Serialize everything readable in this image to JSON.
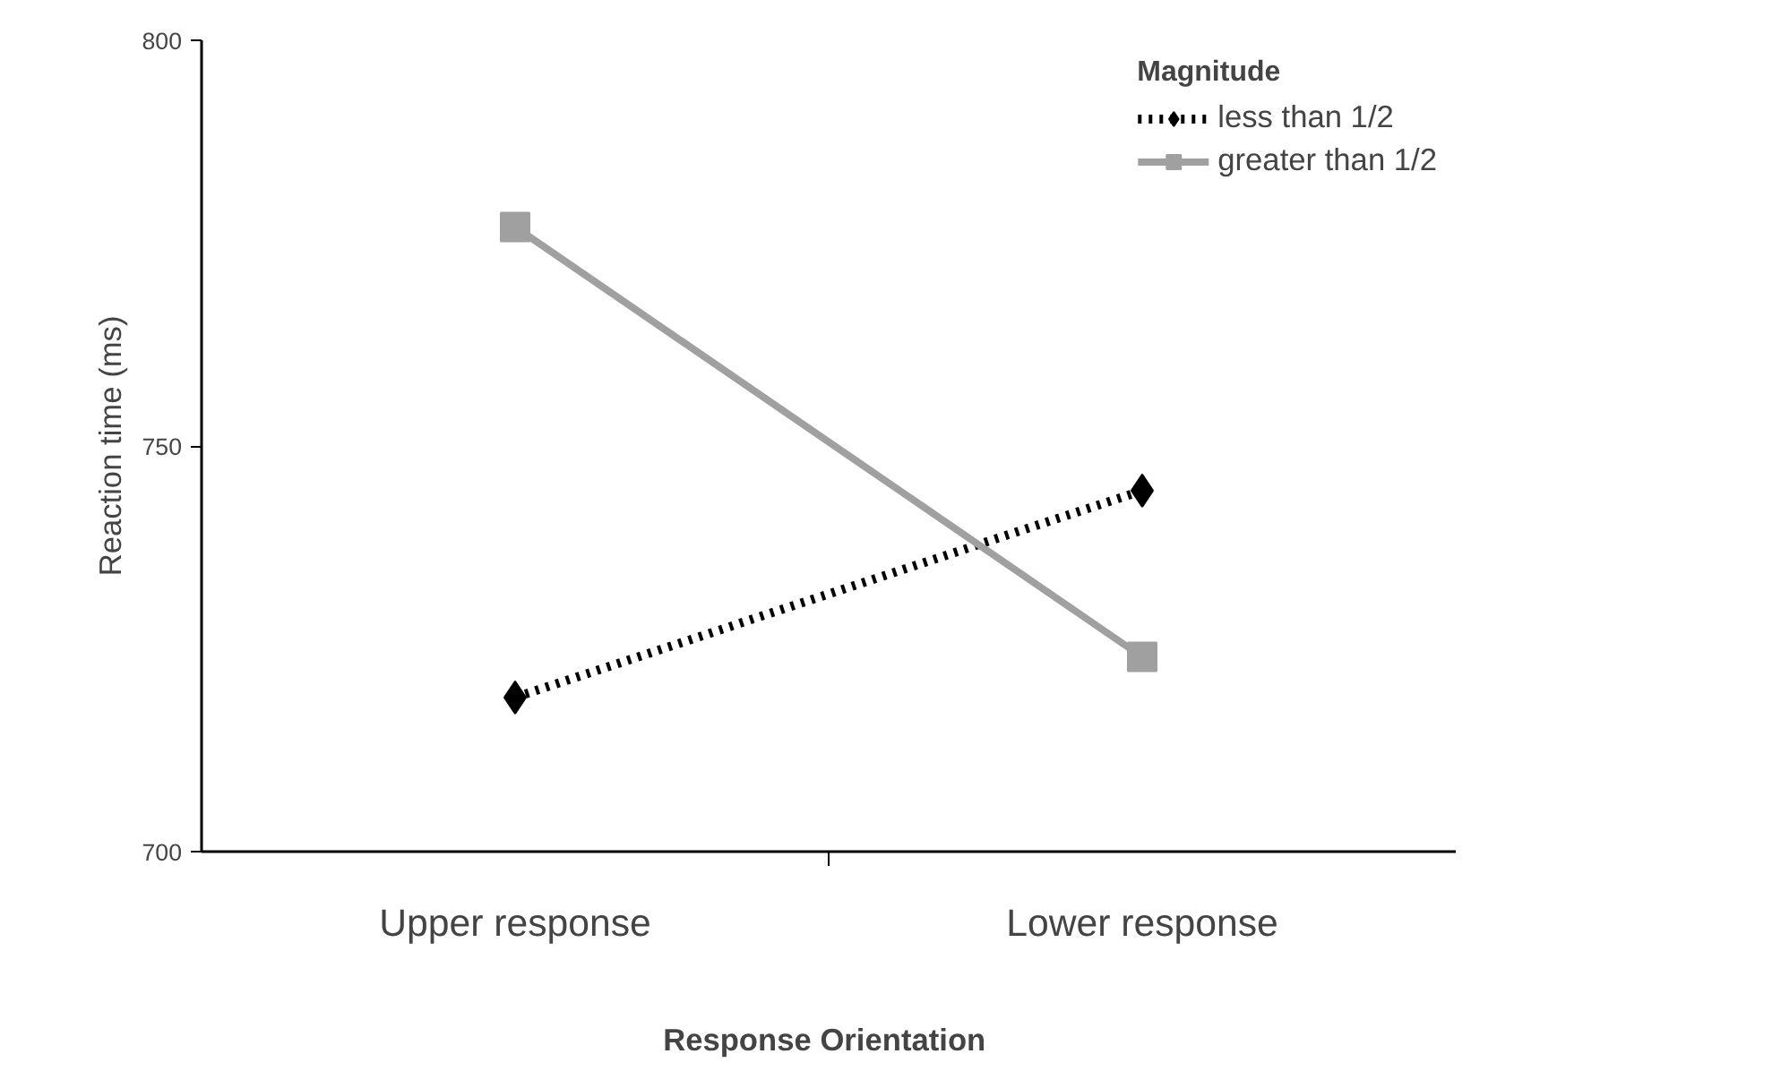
{
  "chart_data": {
    "type": "line",
    "xlabel": "Response  Orientation",
    "ylabel": "Reaction time (ms)",
    "legend_title": "Magnitude",
    "categories": [
      "Upper response",
      "Lower response"
    ],
    "series": [
      {
        "name": "less than 1/2",
        "color": "#000000",
        "values": [
          719,
          744.5
        ],
        "marker": "diamond",
        "line_style": "dotted"
      },
      {
        "name": "greater than 1/2",
        "color": "#a0a0a0",
        "values": [
          777,
          724
        ],
        "marker": "square",
        "line_style": "solid"
      }
    ],
    "ylim": [
      700,
      800
    ],
    "yticks": [
      700,
      750,
      800
    ],
    "grid": false,
    "legend": "top right"
  }
}
